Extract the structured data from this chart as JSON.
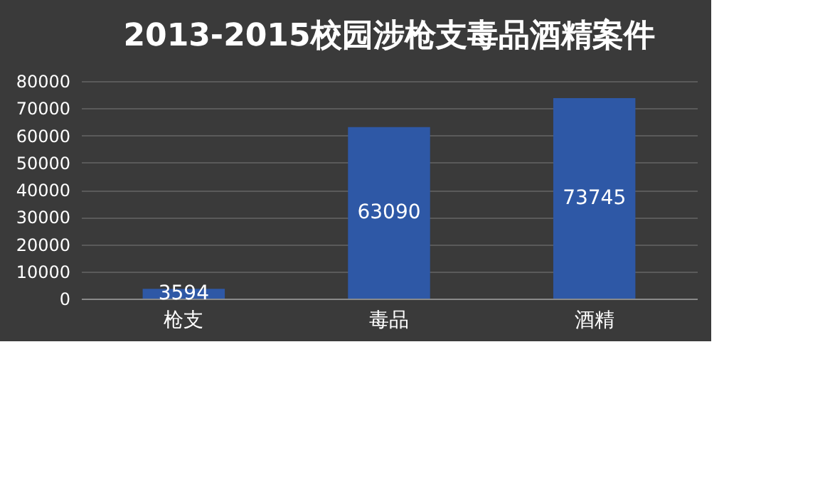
{
  "chart_data": {
    "type": "bar",
    "title": "2013-2015校园涉枪支毒品酒精案件",
    "categories": [
      "枪支",
      "毒品",
      "酒精"
    ],
    "values": [
      3594,
      63090,
      73745
    ],
    "color": "#2e58a6",
    "ylim": [
      0,
      80000
    ],
    "yticks": [
      0,
      10000,
      20000,
      30000,
      40000,
      50000,
      60000,
      70000,
      80000
    ],
    "grid": "y",
    "data_labels": true
  }
}
